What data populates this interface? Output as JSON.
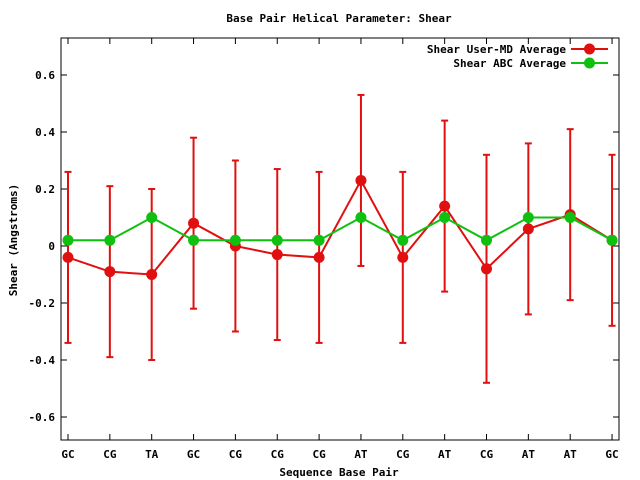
{
  "chart_data": {
    "type": "line",
    "title": "Base Pair Helical Parameter: Shear",
    "xlabel": "Sequence Base Pair",
    "ylabel": "Shear (Angstroms)",
    "categories": [
      "GC",
      "CG",
      "TA",
      "GC",
      "CG",
      "CG",
      "CG",
      "AT",
      "CG",
      "AT",
      "CG",
      "AT",
      "AT",
      "GC"
    ],
    "ylim": [
      -0.68,
      0.73
    ],
    "yticks": [
      -0.6,
      -0.4,
      -0.2,
      0,
      0.2,
      0.4,
      0.6
    ],
    "ytick_labels": [
      "-0.6",
      "-0.4",
      "-0.2",
      "0",
      "0.2",
      "0.4",
      "0.6"
    ],
    "legend_position": "top-right",
    "grid": false,
    "series": [
      {
        "name": "Shear User-MD Average",
        "color": "#e01010",
        "values": [
          -0.04,
          -0.09,
          -0.1,
          0.08,
          0.0,
          -0.03,
          -0.04,
          0.23,
          -0.04,
          0.14,
          -0.08,
          0.06,
          0.11,
          0.02
        ],
        "error": [
          0.3,
          0.3,
          0.3,
          0.3,
          0.3,
          0.3,
          0.3,
          0.3,
          0.3,
          0.3,
          0.4,
          0.3,
          0.3,
          0.3
        ]
      },
      {
        "name": "Shear ABC Average",
        "color": "#10c010",
        "values": [
          0.02,
          0.02,
          0.1,
          0.02,
          0.02,
          0.02,
          0.02,
          0.1,
          0.02,
          0.1,
          0.02,
          0.1,
          0.1,
          0.02
        ]
      }
    ]
  }
}
